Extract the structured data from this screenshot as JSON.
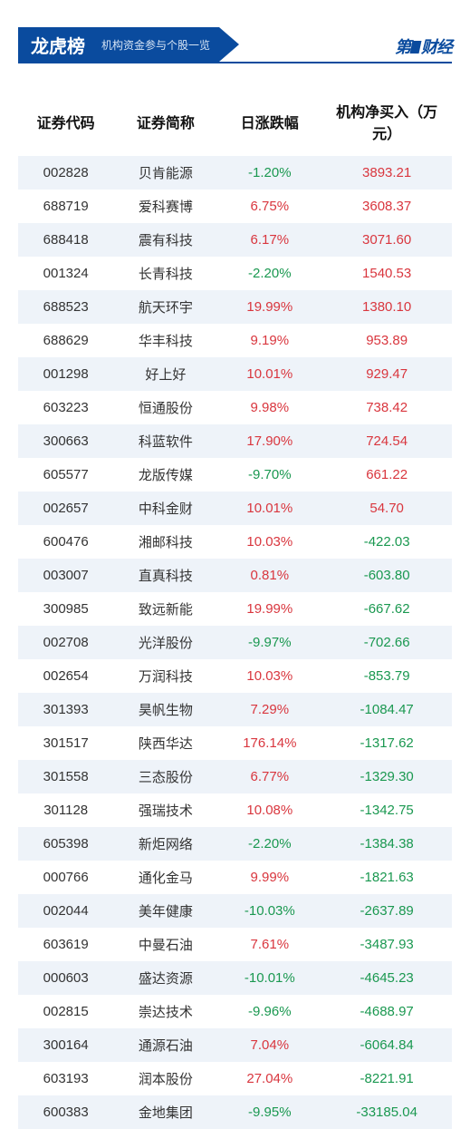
{
  "header": {
    "title_main": "龙虎榜",
    "title_sub": "机构资金参与个股一览",
    "logo_left": "第",
    "logo_right": "财经"
  },
  "colors": {
    "brand": "#0a4b9e",
    "up": "#d9363e",
    "down": "#1a9850",
    "row_alt": "#eef3f9",
    "bg": "#ffffff",
    "text": "#333333"
  },
  "table": {
    "columns": [
      {
        "key": "code",
        "label": "证券代码",
        "align": "center"
      },
      {
        "key": "name",
        "label": "证券简称",
        "align": "center"
      },
      {
        "key": "change",
        "label": "日涨跌幅",
        "align": "center"
      },
      {
        "key": "net",
        "label": "机构净买入（万元）",
        "align": "center"
      }
    ],
    "rows": [
      {
        "code": "002828",
        "name": "贝肯能源",
        "change": "-1.20%",
        "change_dir": "down",
        "net": "3893.21",
        "net_dir": "up"
      },
      {
        "code": "688719",
        "name": "爱科赛博",
        "change": "6.75%",
        "change_dir": "up",
        "net": "3608.37",
        "net_dir": "up"
      },
      {
        "code": "688418",
        "name": "震有科技",
        "change": "6.17%",
        "change_dir": "up",
        "net": "3071.60",
        "net_dir": "up"
      },
      {
        "code": "001324",
        "name": "长青科技",
        "change": "-2.20%",
        "change_dir": "down",
        "net": "1540.53",
        "net_dir": "up"
      },
      {
        "code": "688523",
        "name": "航天环宇",
        "change": "19.99%",
        "change_dir": "up",
        "net": "1380.10",
        "net_dir": "up"
      },
      {
        "code": "688629",
        "name": "华丰科技",
        "change": "9.19%",
        "change_dir": "up",
        "net": "953.89",
        "net_dir": "up"
      },
      {
        "code": "001298",
        "name": "好上好",
        "change": "10.01%",
        "change_dir": "up",
        "net": "929.47",
        "net_dir": "up"
      },
      {
        "code": "603223",
        "name": "恒通股份",
        "change": "9.98%",
        "change_dir": "up",
        "net": "738.42",
        "net_dir": "up"
      },
      {
        "code": "300663",
        "name": "科蓝软件",
        "change": "17.90%",
        "change_dir": "up",
        "net": "724.54",
        "net_dir": "up"
      },
      {
        "code": "605577",
        "name": "龙版传媒",
        "change": "-9.70%",
        "change_dir": "down",
        "net": "661.22",
        "net_dir": "up"
      },
      {
        "code": "002657",
        "name": "中科金财",
        "change": "10.01%",
        "change_dir": "up",
        "net": "54.70",
        "net_dir": "up"
      },
      {
        "code": "600476",
        "name": "湘邮科技",
        "change": "10.03%",
        "change_dir": "up",
        "net": "-422.03",
        "net_dir": "down"
      },
      {
        "code": "003007",
        "name": "直真科技",
        "change": "0.81%",
        "change_dir": "up",
        "net": "-603.80",
        "net_dir": "down"
      },
      {
        "code": "300985",
        "name": "致远新能",
        "change": "19.99%",
        "change_dir": "up",
        "net": "-667.62",
        "net_dir": "down"
      },
      {
        "code": "002708",
        "name": "光洋股份",
        "change": "-9.97%",
        "change_dir": "down",
        "net": "-702.66",
        "net_dir": "down"
      },
      {
        "code": "002654",
        "name": "万润科技",
        "change": "10.03%",
        "change_dir": "up",
        "net": "-853.79",
        "net_dir": "down"
      },
      {
        "code": "301393",
        "name": "昊帆生物",
        "change": "7.29%",
        "change_dir": "up",
        "net": "-1084.47",
        "net_dir": "down"
      },
      {
        "code": "301517",
        "name": "陕西华达",
        "change": "176.14%",
        "change_dir": "up",
        "net": "-1317.62",
        "net_dir": "down"
      },
      {
        "code": "301558",
        "name": "三态股份",
        "change": "6.77%",
        "change_dir": "up",
        "net": "-1329.30",
        "net_dir": "down"
      },
      {
        "code": "301128",
        "name": "强瑞技术",
        "change": "10.08%",
        "change_dir": "up",
        "net": "-1342.75",
        "net_dir": "down"
      },
      {
        "code": "605398",
        "name": "新炬网络",
        "change": "-2.20%",
        "change_dir": "down",
        "net": "-1384.38",
        "net_dir": "down"
      },
      {
        "code": "000766",
        "name": "通化金马",
        "change": "9.99%",
        "change_dir": "up",
        "net": "-1821.63",
        "net_dir": "down"
      },
      {
        "code": "002044",
        "name": "美年健康",
        "change": "-10.03%",
        "change_dir": "down",
        "net": "-2637.89",
        "net_dir": "down"
      },
      {
        "code": "603619",
        "name": "中曼石油",
        "change": "7.61%",
        "change_dir": "up",
        "net": "-3487.93",
        "net_dir": "down"
      },
      {
        "code": "000603",
        "name": "盛达资源",
        "change": "-10.01%",
        "change_dir": "down",
        "net": "-4645.23",
        "net_dir": "down"
      },
      {
        "code": "002815",
        "name": "崇达技术",
        "change": "-9.96%",
        "change_dir": "down",
        "net": "-4688.97",
        "net_dir": "down"
      },
      {
        "code": "300164",
        "name": "通源石油",
        "change": "7.04%",
        "change_dir": "up",
        "net": "-6064.84",
        "net_dir": "down"
      },
      {
        "code": "603193",
        "name": "润本股份",
        "change": "27.04%",
        "change_dir": "up",
        "net": "-8221.91",
        "net_dir": "down"
      },
      {
        "code": "600383",
        "name": "金地集团",
        "change": "-9.95%",
        "change_dir": "down",
        "net": "-33185.04",
        "net_dir": "down"
      }
    ]
  }
}
